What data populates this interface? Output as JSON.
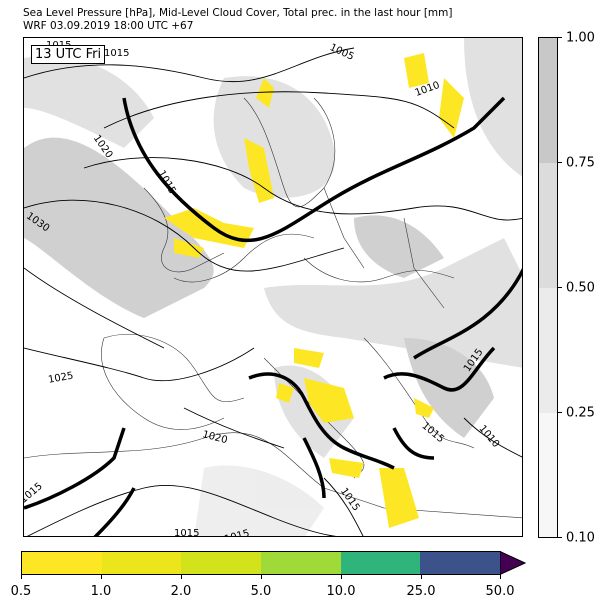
{
  "header": {
    "line1": "Sea Level Pressure [hPa], Mid-Level Cloud Cover, Total prec. in the last hour [mm]",
    "line2": "WRF 03.09.2019 18:00 UTC +67"
  },
  "map": {
    "time_label": "13 UTC Fri",
    "isobar_labels": [
      "1005",
      "1010",
      "1015",
      "1015",
      "1020",
      "1030",
      "1025",
      "1020",
      "1015",
      "1015",
      "1015",
      "1015",
      "1015",
      "1010",
      "1015",
      "1015"
    ]
  },
  "cloud_colorbar": {
    "labels": [
      "1.00",
      "0.75",
      "0.50",
      "0.25",
      "0.10"
    ],
    "colors": [
      "#c8c8c8",
      "#dcdcdc",
      "#ebebeb",
      "#f7f7f7"
    ]
  },
  "precip_colorbar": {
    "labels": [
      "0.5",
      "1.0",
      "2.0",
      "5.0",
      "10.0",
      "25.0",
      "50.0"
    ],
    "colors": [
      "#fde725",
      "#ece51b",
      "#d2e21b",
      "#a0da39",
      "#2fb47c",
      "#3b528b",
      "#440154"
    ]
  }
}
